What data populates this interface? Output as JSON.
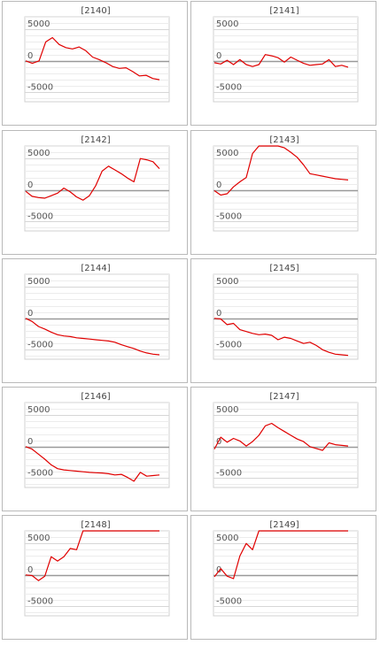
{
  "page": {
    "background": "#ffffff",
    "series_color": "#e00000"
  },
  "chart_data": [
    {
      "type": "line",
      "title": "[2140]",
      "ylim": [
        -6500,
        7000
      ],
      "yticks": [
        5000,
        0,
        -5000
      ],
      "grid": true,
      "x": [
        0,
        1,
        2,
        3,
        4,
        5,
        6,
        7,
        8,
        9,
        10,
        11,
        12,
        13,
        14,
        15,
        16,
        17,
        18,
        19,
        20
      ],
      "values": [
        0,
        -400,
        0,
        3000,
        3700,
        2600,
        2100,
        1900,
        2200,
        1600,
        600,
        200,
        -300,
        -900,
        -1200,
        -1100,
        -1700,
        -2400,
        -2300,
        -2800,
        -3000
      ]
    },
    {
      "type": "line",
      "title": "[2141]",
      "ylim": [
        -6500,
        7000
      ],
      "yticks": [
        5000,
        0,
        -5000
      ],
      "grid": true,
      "x": [
        0,
        1,
        2,
        3,
        4,
        5,
        6,
        7,
        8,
        9,
        10,
        11,
        12,
        13,
        14,
        15,
        16,
        17,
        18,
        19,
        20,
        21
      ],
      "values": [
        -300,
        -500,
        100,
        -600,
        200,
        -600,
        -900,
        -600,
        1000,
        800,
        500,
        -200,
        600,
        100,
        -400,
        -700,
        -600,
        -500,
        200,
        -900,
        -700,
        -1000
      ]
    },
    {
      "type": "line",
      "title": "[2142]",
      "ylim": [
        -6500,
        7000
      ],
      "yticks": [
        5000,
        0,
        -5000
      ],
      "grid": true,
      "x": [
        0,
        1,
        2,
        3,
        4,
        5,
        6,
        7,
        8,
        9,
        10,
        11,
        12,
        13,
        14,
        15,
        16,
        17,
        18,
        19,
        20,
        21
      ],
      "values": [
        -200,
        -1000,
        -1200,
        -1300,
        -900,
        -500,
        300,
        -300,
        -1100,
        -1600,
        -900,
        700,
        3000,
        3800,
        3200,
        2600,
        1900,
        1300,
        5000,
        4800,
        4500,
        3400
      ]
    },
    {
      "type": "line",
      "title": "[2143]",
      "ylim": [
        -6500,
        7000
      ],
      "yticks": [
        5000,
        0,
        -5000
      ],
      "grid": true,
      "x": [
        0,
        1,
        2,
        3,
        4,
        5,
        6,
        7,
        8,
        9,
        10,
        11,
        12,
        13,
        14,
        15,
        16,
        17,
        18,
        19,
        20,
        21
      ],
      "values": [
        -100,
        -800,
        -600,
        500,
        1300,
        2000,
        5800,
        7000,
        7000,
        7000,
        7000,
        6700,
        6000,
        5200,
        4000,
        2600,
        2400,
        2200,
        2000,
        1800,
        1700,
        1600
      ]
    },
    {
      "type": "line",
      "title": "[2144]",
      "ylim": [
        -6500,
        7000
      ],
      "yticks": [
        5000,
        0,
        -5000
      ],
      "grid": true,
      "x": [
        0,
        1,
        2,
        3,
        4,
        5,
        6,
        7,
        8,
        9,
        10,
        11,
        12,
        13,
        14,
        15,
        16,
        17,
        18,
        19,
        20,
        21
      ],
      "values": [
        0,
        -500,
        -1300,
        -1700,
        -2200,
        -2600,
        -2800,
        -2900,
        -3100,
        -3200,
        -3300,
        -3400,
        -3500,
        -3600,
        -3800,
        -4200,
        -4500,
        -4800,
        -5200,
        -5500,
        -5700,
        -5800
      ]
    },
    {
      "type": "line",
      "title": "[2145]",
      "ylim": [
        -6500,
        7000
      ],
      "yticks": [
        5000,
        0,
        -5000
      ],
      "grid": true,
      "x": [
        0,
        1,
        2,
        3,
        4,
        5,
        6,
        7,
        8,
        9,
        10,
        11,
        12,
        13,
        14,
        15,
        16,
        17,
        18,
        19,
        20,
        21
      ],
      "values": [
        0,
        -100,
        -1000,
        -800,
        -1800,
        -2100,
        -2400,
        -2600,
        -2500,
        -2700,
        -3400,
        -3000,
        -3200,
        -3600,
        -4000,
        -3800,
        -4300,
        -5000,
        -5400,
        -5700,
        -5800,
        -5900
      ]
    },
    {
      "type": "line",
      "title": "[2146]",
      "ylim": [
        -6500,
        7000
      ],
      "yticks": [
        5000,
        0,
        -5000
      ],
      "grid": true,
      "x": [
        0,
        1,
        2,
        3,
        4,
        5,
        6,
        7,
        8,
        9,
        10,
        11,
        12,
        13,
        14,
        15,
        16,
        17,
        18,
        19,
        20,
        21
      ],
      "values": [
        0,
        -400,
        -1200,
        -2000,
        -2900,
        -3500,
        -3700,
        -3800,
        -3900,
        -4000,
        -4100,
        -4150,
        -4200,
        -4300,
        -4500,
        -4400,
        -4900,
        -5500,
        -4100,
        -4700,
        -4600,
        -4500
      ]
    },
    {
      "type": "line",
      "title": "[2147]",
      "ylim": [
        -6500,
        7000
      ],
      "yticks": [
        5000,
        0,
        -5000
      ],
      "grid": true,
      "x": [
        0,
        1,
        2,
        3,
        4,
        5,
        6,
        7,
        8,
        9,
        10,
        11,
        12,
        13,
        14,
        15,
        16,
        17,
        18,
        19,
        20,
        21
      ],
      "values": [
        -400,
        1500,
        700,
        1300,
        900,
        100,
        800,
        1800,
        3300,
        3700,
        3000,
        2400,
        1800,
        1200,
        800,
        0,
        -300,
        -600,
        600,
        300,
        200,
        100
      ]
    },
    {
      "type": "line",
      "title": "[2148]",
      "ylim": [
        -6500,
        7000
      ],
      "yticks": [
        5000,
        0,
        -5000
      ],
      "grid": true,
      "x": [
        0,
        1,
        2,
        3,
        4,
        5,
        6,
        7,
        8,
        9,
        10,
        11,
        12,
        13,
        14,
        15,
        16,
        17,
        18,
        19,
        20,
        21
      ],
      "values": [
        0,
        -100,
        -900,
        -200,
        2900,
        2200,
        2900,
        4200,
        4000,
        7000,
        7000,
        7000,
        7000,
        7000,
        7000,
        7000,
        7000,
        7000,
        7000,
        7000,
        7000,
        7000
      ]
    },
    {
      "type": "line",
      "title": "[2149]",
      "ylim": [
        -6500,
        7000
      ],
      "yticks": [
        5000,
        0,
        -5000
      ],
      "grid": true,
      "x": [
        0,
        1,
        2,
        3,
        4,
        5,
        6,
        7,
        8,
        9,
        10,
        11,
        12,
        13,
        14,
        15,
        16,
        17,
        18,
        19,
        20,
        21
      ],
      "values": [
        -300,
        1000,
        -200,
        -600,
        3000,
        5000,
        4000,
        7000,
        7000,
        7000,
        7000,
        7000,
        7000,
        7000,
        7000,
        7000,
        7000,
        7000,
        7000,
        7000,
        7000,
        7000
      ]
    }
  ]
}
